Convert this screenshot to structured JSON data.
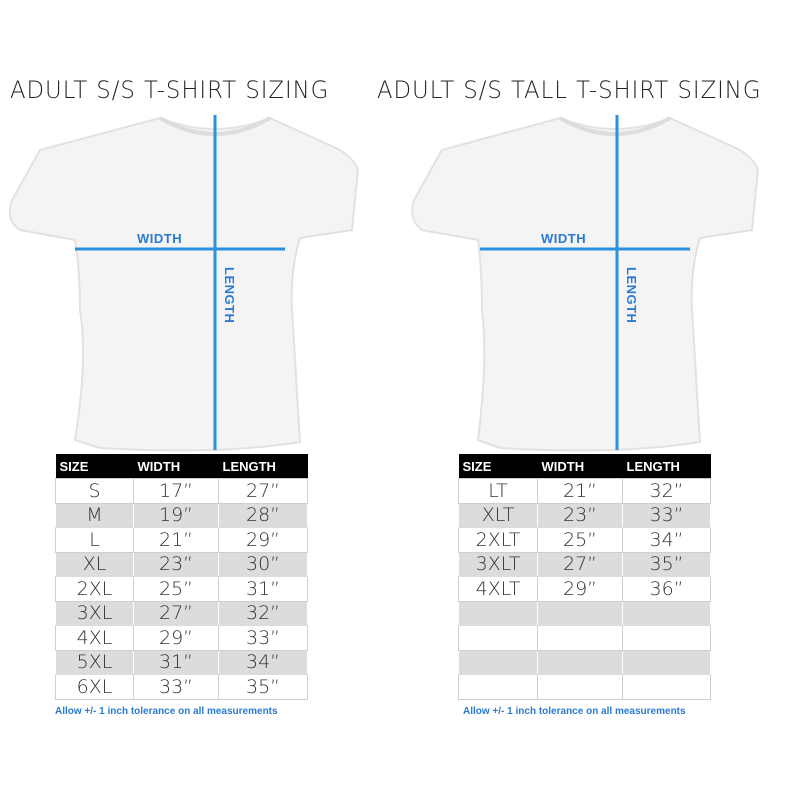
{
  "left": {
    "title": "ADULT S/S T-SHIRT SIZING",
    "width_label": "WIDTH",
    "length_label": "LENGTH",
    "table": {
      "headers": [
        "SIZE",
        "WIDTH",
        "LENGTH"
      ],
      "rows": [
        [
          "S",
          "17”",
          "27”"
        ],
        [
          "M",
          "19”",
          "28”"
        ],
        [
          "L",
          "21”",
          "29”"
        ],
        [
          "XL",
          "23”",
          "30”"
        ],
        [
          "2XL",
          "25”",
          "31”"
        ],
        [
          "3XL",
          "27”",
          "32”"
        ],
        [
          "4XL",
          "29”",
          "33”"
        ],
        [
          "5XL",
          "31”",
          "34”"
        ],
        [
          "6XL",
          "33”",
          "35”"
        ]
      ]
    },
    "note": "Allow +/- 1 inch tolerance on all measurements"
  },
  "right": {
    "title": "ADULT S/S TALL T-SHIRT SIZING",
    "width_label": "WIDTH",
    "length_label": "LENGTH",
    "table": {
      "headers": [
        "SIZE",
        "WIDTH",
        "LENGTH"
      ],
      "rows": [
        [
          "LT",
          "21”",
          "32”"
        ],
        [
          "XLT",
          "23”",
          "33”"
        ],
        [
          "2XLT",
          "25”",
          "34”"
        ],
        [
          "3XLT",
          "27”",
          "35”"
        ],
        [
          "4XLT",
          "29”",
          "36”"
        ],
        [
          "",
          "",
          ""
        ],
        [
          "",
          "",
          ""
        ],
        [
          "",
          "",
          ""
        ],
        [
          "",
          "",
          ""
        ]
      ]
    },
    "note": "Allow +/- 1 inch tolerance on all measurements"
  },
  "colors": {
    "accent": "#2a7ad5",
    "header_bg": "#000000",
    "row_alt": "#dcdcdc"
  }
}
